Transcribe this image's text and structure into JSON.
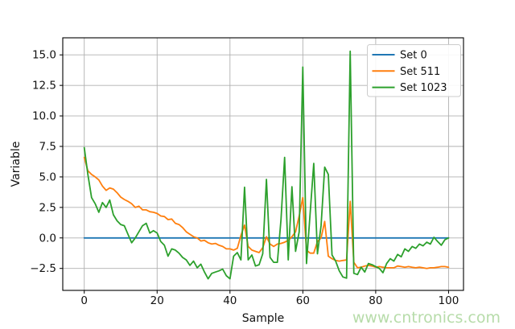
{
  "watermark": {
    "text": "www.cntronics.com",
    "color": "#b7dcaa"
  },
  "figure": {
    "background": "#ffffff",
    "spine_color": "#000000"
  },
  "chart_data": {
    "type": "line",
    "title": "",
    "xlabel": "Sample",
    "ylabel": "Variable",
    "x_start": 0,
    "x_step": 1,
    "n_points": 101,
    "xlim": [
      -5.9,
      104.1
    ],
    "ylim": [
      -4.3,
      16.4
    ],
    "x_ticks": [
      0,
      20,
      40,
      60,
      80,
      100
    ],
    "y_ticks": [
      -2.5,
      0.0,
      2.5,
      5.0,
      7.5,
      10.0,
      12.5,
      15.0
    ],
    "grid": true,
    "grid_color": "#b0b0b0",
    "legend": {
      "position": "upper right"
    },
    "series": [
      {
        "name": "Set 0",
        "color": "#1f77b4",
        "constant": 0
      },
      {
        "name": "Set 511",
        "color": "#ff7f0e",
        "values": [
          6.6,
          5.5,
          5.2,
          5.0,
          4.75,
          4.25,
          3.9,
          4.1,
          4.0,
          3.7,
          3.35,
          3.15,
          3.0,
          2.8,
          2.5,
          2.6,
          2.3,
          2.3,
          2.15,
          2.1,
          2.0,
          1.8,
          1.75,
          1.5,
          1.55,
          1.2,
          1.1,
          0.85,
          0.5,
          0.3,
          0.1,
          0.0,
          -0.25,
          -0.2,
          -0.4,
          -0.5,
          -0.45,
          -0.6,
          -0.7,
          -0.9,
          -0.9,
          -1.0,
          -0.85,
          0.2,
          1.05,
          -0.7,
          -1.0,
          -1.1,
          -1.2,
          -0.8,
          0.1,
          -0.5,
          -0.7,
          -0.5,
          -0.45,
          -0.35,
          -0.2,
          0.1,
          0.5,
          1.8,
          3.3,
          -1.0,
          -1.25,
          -1.25,
          -0.3,
          0.0,
          1.35,
          -1.5,
          -1.7,
          -1.85,
          -1.9,
          -1.85,
          -1.8,
          3.0,
          -2.0,
          -2.45,
          -2.4,
          -2.3,
          -2.25,
          -2.3,
          -2.4,
          -2.35,
          -2.4,
          -2.45,
          -2.45,
          -2.45,
          -2.3,
          -2.35,
          -2.4,
          -2.35,
          -2.4,
          -2.45,
          -2.4,
          -2.45,
          -2.5,
          -2.45,
          -2.45,
          -2.4,
          -2.35,
          -2.35,
          -2.4
        ]
      },
      {
        "name": "Set 1023",
        "color": "#2ca02c",
        "values": [
          7.4,
          5.2,
          3.3,
          2.8,
          2.1,
          2.9,
          2.5,
          3.1,
          1.9,
          1.4,
          1.1,
          1.0,
          0.3,
          -0.4,
          0.0,
          0.5,
          1.0,
          1.2,
          0.4,
          0.6,
          0.4,
          -0.3,
          -0.6,
          -1.5,
          -0.9,
          -1.0,
          -1.25,
          -1.6,
          -1.8,
          -2.25,
          -1.9,
          -2.45,
          -2.15,
          -2.8,
          -3.35,
          -2.9,
          -2.8,
          -2.7,
          -2.55,
          -3.1,
          -3.35,
          -1.5,
          -1.2,
          -1.8,
          4.15,
          -1.8,
          -1.4,
          -2.3,
          -2.2,
          -1.3,
          4.8,
          -1.6,
          -2.0,
          -2.0,
          1.5,
          6.6,
          -1.8,
          4.2,
          -1.1,
          0.5,
          14.0,
          -2.1,
          2.0,
          6.1,
          -1.3,
          1.0,
          5.8,
          5.2,
          -1.4,
          -1.9,
          -2.7,
          -3.2,
          -3.3,
          15.3,
          -2.9,
          -3.0,
          -2.4,
          -2.8,
          -2.1,
          -2.2,
          -2.35,
          -2.5,
          -2.85,
          -2.1,
          -1.7,
          -1.9,
          -1.35,
          -1.55,
          -0.9,
          -1.1,
          -0.7,
          -0.85,
          -0.5,
          -0.65,
          -0.35,
          -0.5,
          0.05,
          -0.3,
          -0.6,
          -0.15,
          0.0
        ]
      }
    ]
  }
}
